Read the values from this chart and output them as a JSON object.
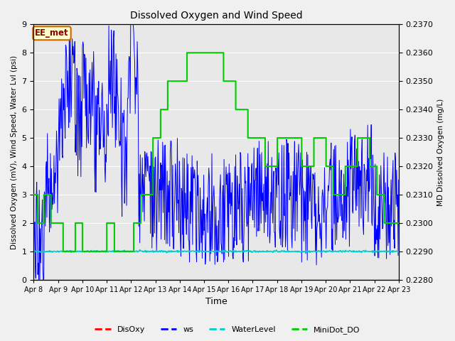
{
  "title": "Dissolved Oxygen and Wind Speed",
  "xlabel": "Time",
  "ylabel_left": "Dissolved Oxygen (mV), Wind Speed, Water Lvl (psi)",
  "ylabel_right": "MD Dissolved Oxygen (mg/L)",
  "ylim_left": [
    0.0,
    9.0
  ],
  "ylim_right": [
    0.228,
    0.237
  ],
  "annotation": "EE_met",
  "fig_bg_color": "#f0f0f0",
  "plot_bg_color": "#e8e8e8",
  "x_tick_labels": [
    "Apr 8",
    "Apr 9",
    "Apr 10",
    "Apr 11",
    "Apr 12",
    "Apr 13",
    "Apr 14",
    "Apr 15",
    "Apr 16",
    "Apr 17",
    "Apr 18",
    "Apr 19",
    "Apr 20",
    "Apr 21",
    "Apr 22",
    "Apr 23"
  ],
  "disoxy_color": "#ff0000",
  "ws_color": "#0000ff",
  "waterlevel_color": "#00cccc",
  "minidot_color": "#00cc00",
  "legend_labels": [
    "DisOxy",
    "ws",
    "WaterLevel",
    "MiniDot_DO"
  ]
}
